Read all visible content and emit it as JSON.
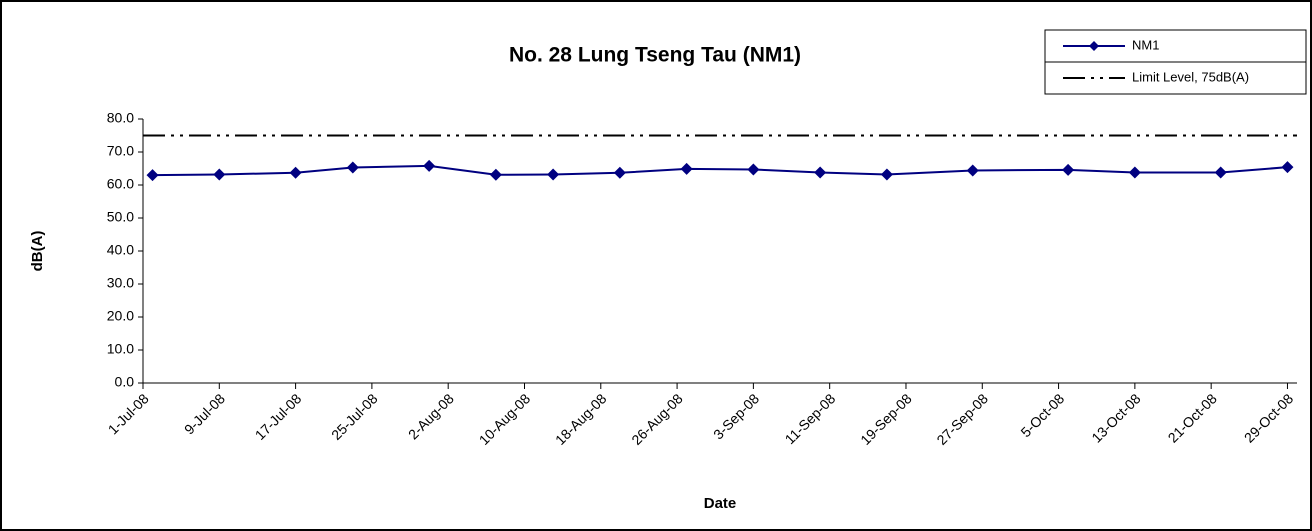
{
  "chart_data": {
    "type": "line",
    "title": "No. 28 Lung Tseng Tau (NM1)",
    "x_label": "Date",
    "y_label": "dB(A)",
    "x": [
      "2008-07-02",
      "2008-07-09",
      "2008-07-17",
      "2008-07-23",
      "2008-07-31",
      "2008-08-07",
      "2008-08-13",
      "2008-08-20",
      "2008-08-27",
      "2008-09-03",
      "2008-09-10",
      "2008-09-17",
      "2008-09-26",
      "2008-10-06",
      "2008-10-13",
      "2008-10-22",
      "2008-10-29"
    ],
    "series": [
      {
        "name": "NM1",
        "color": "#000080",
        "marker": "diamond",
        "values": [
          63.0,
          63.2,
          63.7,
          65.3,
          65.8,
          63.1,
          63.2,
          63.7,
          64.9,
          64.7,
          63.8,
          63.2,
          64.4,
          64.6,
          63.8,
          63.8,
          65.4
        ]
      },
      {
        "name": "Limit Level, 75dB(A)",
        "color": "#000000",
        "dash": "dash-dot-dot",
        "x": [
          "2008-07-01",
          "2008-10-30"
        ],
        "values": [
          75,
          75
        ]
      }
    ],
    "xlim": [
      "2008-07-01",
      "2008-10-30"
    ],
    "xticks": [
      {
        "value": "2008-07-01",
        "label": "1-Jul-08"
      },
      {
        "value": "2008-07-09",
        "label": "9-Jul-08"
      },
      {
        "value": "2008-07-17",
        "label": "17-Jul-08"
      },
      {
        "value": "2008-07-25",
        "label": "25-Jul-08"
      },
      {
        "value": "2008-08-02",
        "label": "2-Aug-08"
      },
      {
        "value": "2008-08-10",
        "label": "10-Aug-08"
      },
      {
        "value": "2008-08-18",
        "label": "18-Aug-08"
      },
      {
        "value": "2008-08-26",
        "label": "26-Aug-08"
      },
      {
        "value": "2008-09-03",
        "label": "3-Sep-08"
      },
      {
        "value": "2008-09-11",
        "label": "11-Sep-08"
      },
      {
        "value": "2008-09-19",
        "label": "19-Sep-08"
      },
      {
        "value": "2008-09-27",
        "label": "27-Sep-08"
      },
      {
        "value": "2008-10-05",
        "label": "5-Oct-08"
      },
      {
        "value": "2008-10-13",
        "label": "13-Oct-08"
      },
      {
        "value": "2008-10-21",
        "label": "21-Oct-08"
      },
      {
        "value": "2008-10-29",
        "label": "29-Oct-08"
      }
    ],
    "ylim": [
      0,
      80
    ],
    "yticks": [
      {
        "value": 0,
        "label": "0.0"
      },
      {
        "value": 10,
        "label": "10.0"
      },
      {
        "value": 20,
        "label": "20.0"
      },
      {
        "value": 30,
        "label": "30.0"
      },
      {
        "value": 40,
        "label": "40.0"
      },
      {
        "value": 50,
        "label": "50.0"
      },
      {
        "value": 60,
        "label": "60.0"
      },
      {
        "value": 70,
        "label": "70.0"
      },
      {
        "value": 80,
        "label": "80.0"
      }
    ],
    "grid": false,
    "legend": "top-right"
  }
}
